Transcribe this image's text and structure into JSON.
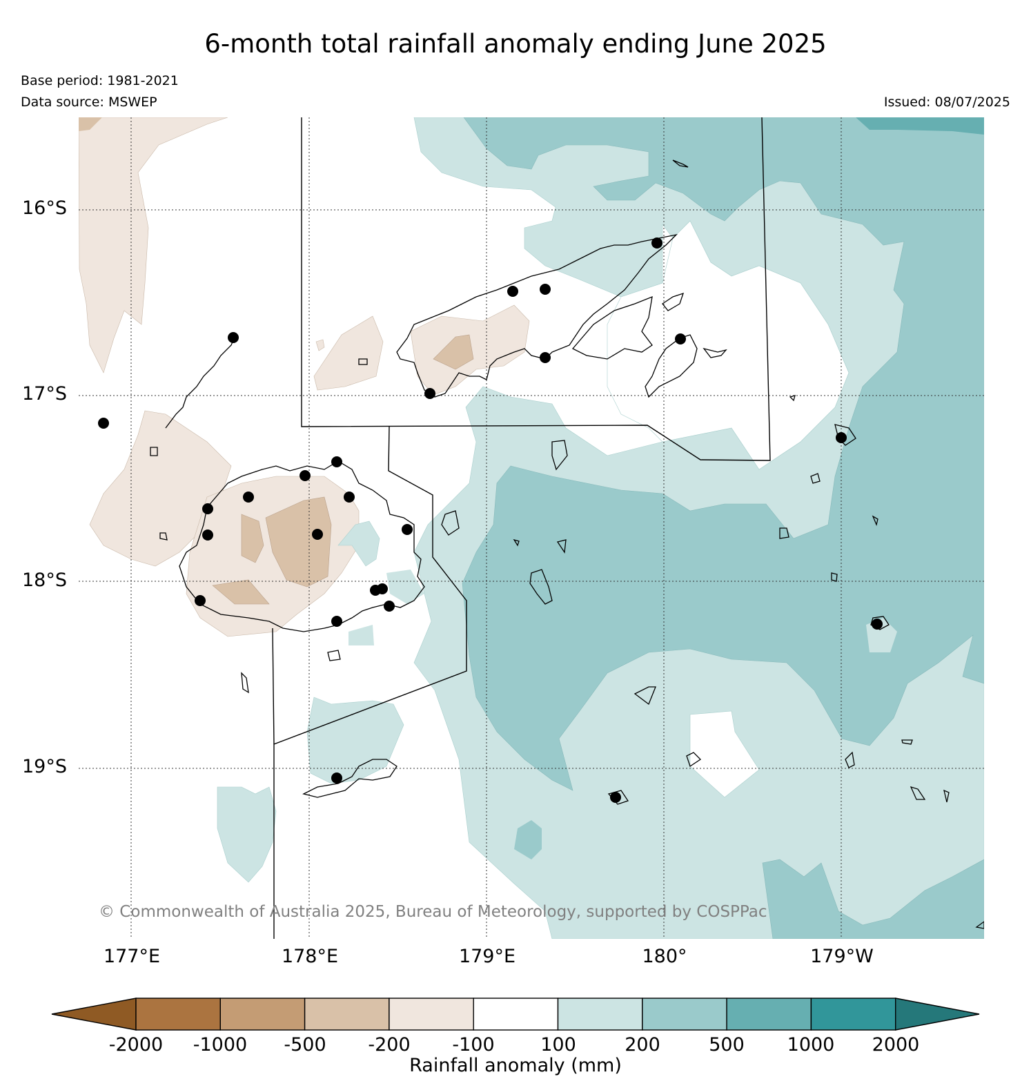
{
  "title": "6-month total rainfall anomaly ending June 2025",
  "base_period": "Base period: 1981-2021",
  "data_source": "Data source: MSWEP",
  "issued": "Issued: 08/07/2025",
  "copyright": "© Commonwealth of Australia 2025, Bureau of Meteorology, supported by COSPPac",
  "lat_labels": [
    "16°S",
    "17°S",
    "18°S",
    "19°S"
  ],
  "lon_labels": [
    "177°E",
    "178°E",
    "179°E",
    "180°",
    "179°W"
  ],
  "colorbar": {
    "title": "Rainfall anomaly (mm)",
    "ticks": [
      "-2000",
      "-1000",
      "-500",
      "-200",
      "-100",
      "100",
      "200",
      "500",
      "1000",
      "2000"
    ],
    "colors": [
      "#8f5a24",
      "#ab7440",
      "#c49c74",
      "#d9c1a8",
      "#f0e6de",
      "#ffffff",
      "#cce4e3",
      "#9acacb",
      "#66afb1",
      "#31969a",
      "#25787a"
    ]
  },
  "colors": {
    "dry_light": "#f0e6de",
    "dry_mid": "#d9c1a8",
    "wet_light": "#cce4e3",
    "wet_mid": "#9acacb",
    "wet_strong": "#66afb1"
  }
}
